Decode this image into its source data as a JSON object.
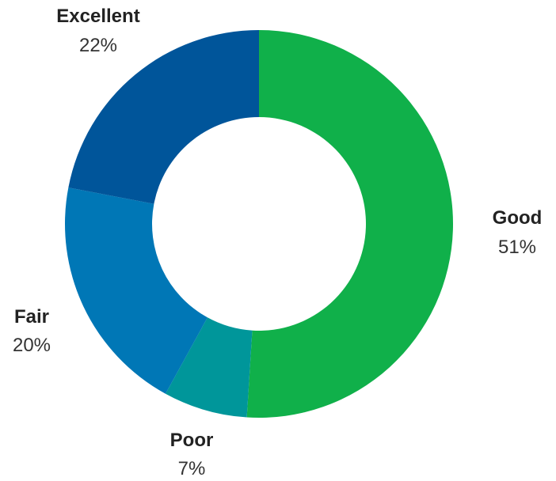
{
  "chart_data": {
    "type": "pie",
    "donut": true,
    "start_angle_deg": 0,
    "direction": "clockwise",
    "categories": [
      "Good",
      "Poor",
      "Fair",
      "Excellent"
    ],
    "values": [
      51,
      7,
      20,
      22
    ],
    "value_labels": [
      "51%",
      "7%",
      "20%",
      "22%"
    ],
    "colors": [
      "#10b04a",
      "#00969a",
      "#0077b6",
      "#00559a"
    ],
    "legend": "none",
    "title": ""
  }
}
